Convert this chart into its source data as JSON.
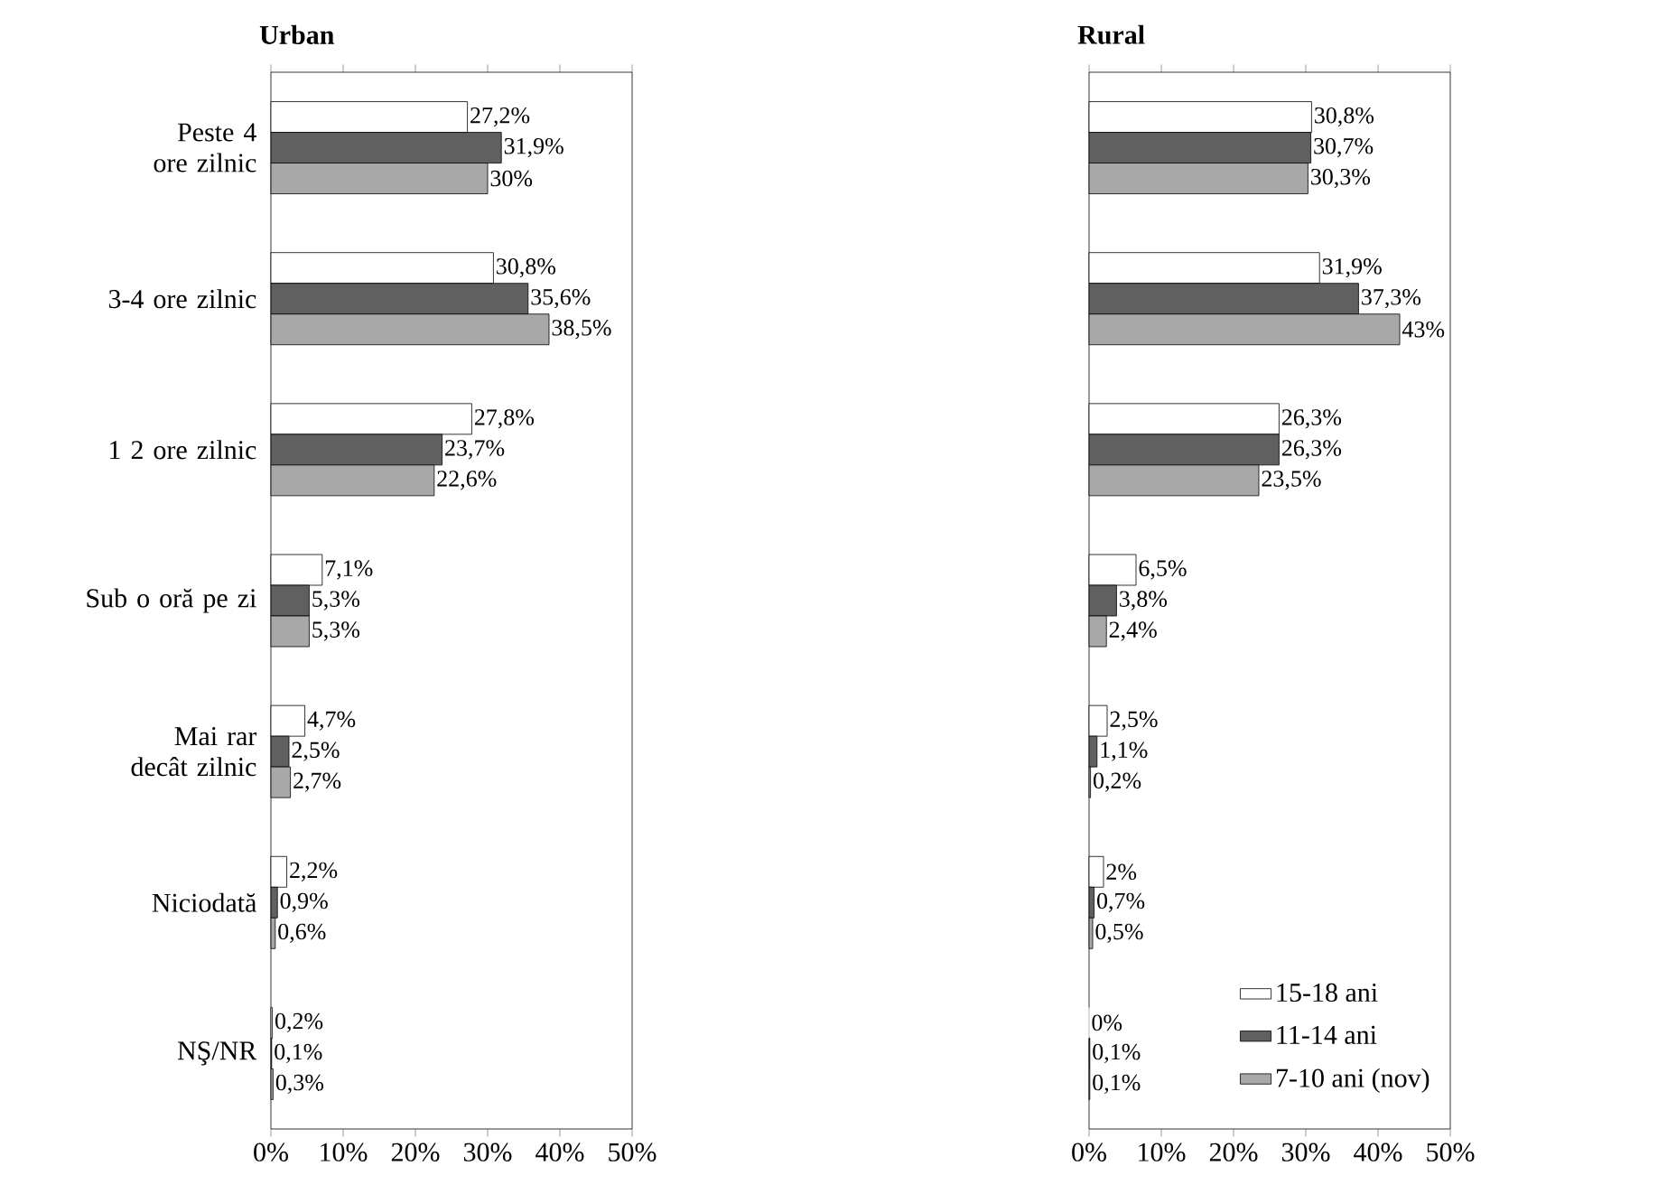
{
  "chart_data": [
    {
      "type": "bar",
      "orientation": "horizontal",
      "title": "Urban",
      "legend": false,
      "categories": [
        "Peste 4 ore zilnic",
        "3-4 ore zilnic",
        "1 2 ore zilnic",
        "Sub o oră pe zi",
        "Mai rar decât zilnic",
        "Niciodată",
        "NŞ/NR"
      ],
      "xlim": [
        0,
        50
      ],
      "xticks": [
        {
          "value": 0,
          "label": "0%"
        },
        {
          "value": 10,
          "label": "10%"
        },
        {
          "value": 20,
          "label": "20%"
        },
        {
          "value": 30,
          "label": "30%"
        },
        {
          "value": 40,
          "label": "40%"
        },
        {
          "value": 50,
          "label": "50%"
        }
      ],
      "series": [
        {
          "color": "#ffffff",
          "values": [
            27.2,
            30.8,
            27.8,
            7.1,
            4.7,
            2.2,
            0.2
          ],
          "value_labels": [
            "27,2%",
            "30,8%",
            "27,8%",
            "7,1%",
            "4,7%",
            "2,2%",
            "0,2%"
          ]
        },
        {
          "color": "#606060",
          "values": [
            31.9,
            35.6,
            23.7,
            5.3,
            2.5,
            0.9,
            0.1
          ],
          "value_labels": [
            "31,9%",
            "35,6%",
            "23,7%",
            "5,3%",
            "2,5%",
            "0,9%",
            "0,1%"
          ]
        },
        {
          "color": "#a8a8a8",
          "values": [
            30,
            38.5,
            22.6,
            5.3,
            2.7,
            0.6,
            0.3
          ],
          "value_labels": [
            "30%",
            "38,5%",
            "22,6%",
            "5,3%",
            "2,7%",
            "0,6%",
            "0,3%"
          ]
        }
      ]
    },
    {
      "type": "bar",
      "orientation": "horizontal",
      "title": "Rural",
      "legend": "bottom right",
      "tick_labels": "x",
      "categories": [
        null,
        null,
        null,
        null,
        null,
        null,
        null
      ],
      "xlim": [
        0,
        50
      ],
      "xticks": [
        {
          "value": 0,
          "label": "0%"
        },
        {
          "value": 10,
          "label": "10%"
        },
        {
          "value": 20,
          "label": "20%"
        },
        {
          "value": 30,
          "label": "30%"
        },
        {
          "value": 40,
          "label": "40%"
        },
        {
          "value": 50,
          "label": "50%"
        }
      ],
      "series": [
        {
          "name": "15-18 ani",
          "color": "#ffffff",
          "values": [
            30.8,
            31.9,
            26.3,
            6.5,
            2.5,
            2,
            0
          ],
          "value_labels": [
            "30,8%",
            "31,9%",
            "26,3%",
            "6,5%",
            "2,5%",
            "2%",
            "0%"
          ]
        },
        {
          "name": "11-14 ani",
          "color": "#606060",
          "values": [
            30.7,
            37.3,
            26.3,
            3.8,
            1.1,
            0.7,
            0.1
          ],
          "value_labels": [
            "30,7%",
            "37,3%",
            "26,3%",
            "3,8%",
            "1,1%",
            "0,7%",
            "0,1%"
          ]
        },
        {
          "name": "7-10 ani (nov)",
          "color": "#a8a8a8",
          "values": [
            30.3,
            43,
            23.5,
            2.4,
            0.2,
            0.5,
            0.1
          ],
          "value_labels": [
            "30,3%",
            "43%",
            "23,5%",
            "2,4%",
            "0,2%",
            "0,5%",
            "0,1%"
          ]
        }
      ]
    }
  ]
}
